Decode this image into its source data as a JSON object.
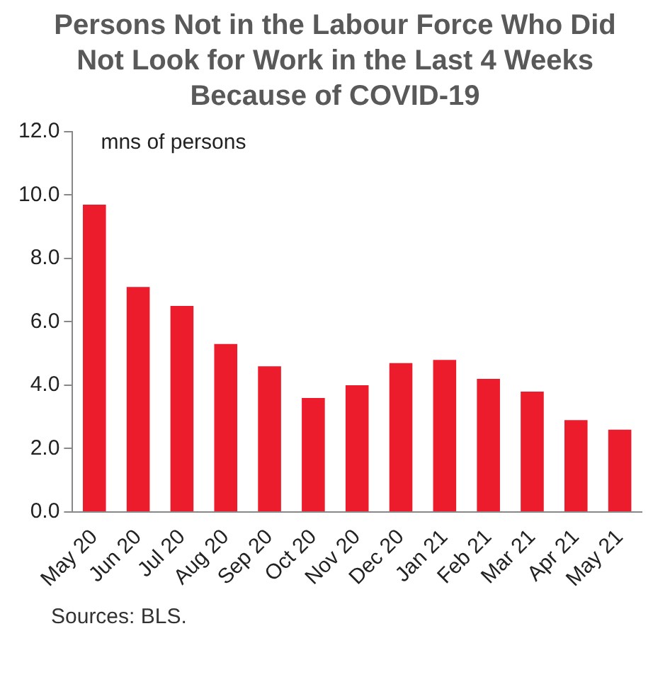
{
  "chart_data": {
    "type": "bar",
    "title": "Persons Not in the Labour Force Who Did Not Look for Work in the Last 4 Weeks Because of COVID-19",
    "ylabel": "mns of persons",
    "categories": [
      "May 20",
      "Jun 20",
      "Jul 20",
      "Aug 20",
      "Sep 20",
      "Oct 20",
      "Nov 20",
      "Dec 20",
      "Jan 21",
      "Feb 21",
      "Mar 21",
      "Apr 21",
      "May 21"
    ],
    "values": [
      9.7,
      7.1,
      6.5,
      5.3,
      4.6,
      3.6,
      4.0,
      4.7,
      4.8,
      4.2,
      3.8,
      2.9,
      2.6
    ],
    "color": "#ec1c2d",
    "ylim": [
      0,
      12
    ],
    "yticks": [
      {
        "value": 0,
        "label": "0.0"
      },
      {
        "value": 2,
        "label": "2.0"
      },
      {
        "value": 4,
        "label": "4.0"
      },
      {
        "value": 6,
        "label": "6.0"
      },
      {
        "value": 8,
        "label": "8.0"
      },
      {
        "value": 10,
        "label": "10.0"
      },
      {
        "value": 12,
        "label": "12.0"
      }
    ],
    "grid": false,
    "legend": false,
    "annotations": [
      "Sources: BLS."
    ]
  }
}
